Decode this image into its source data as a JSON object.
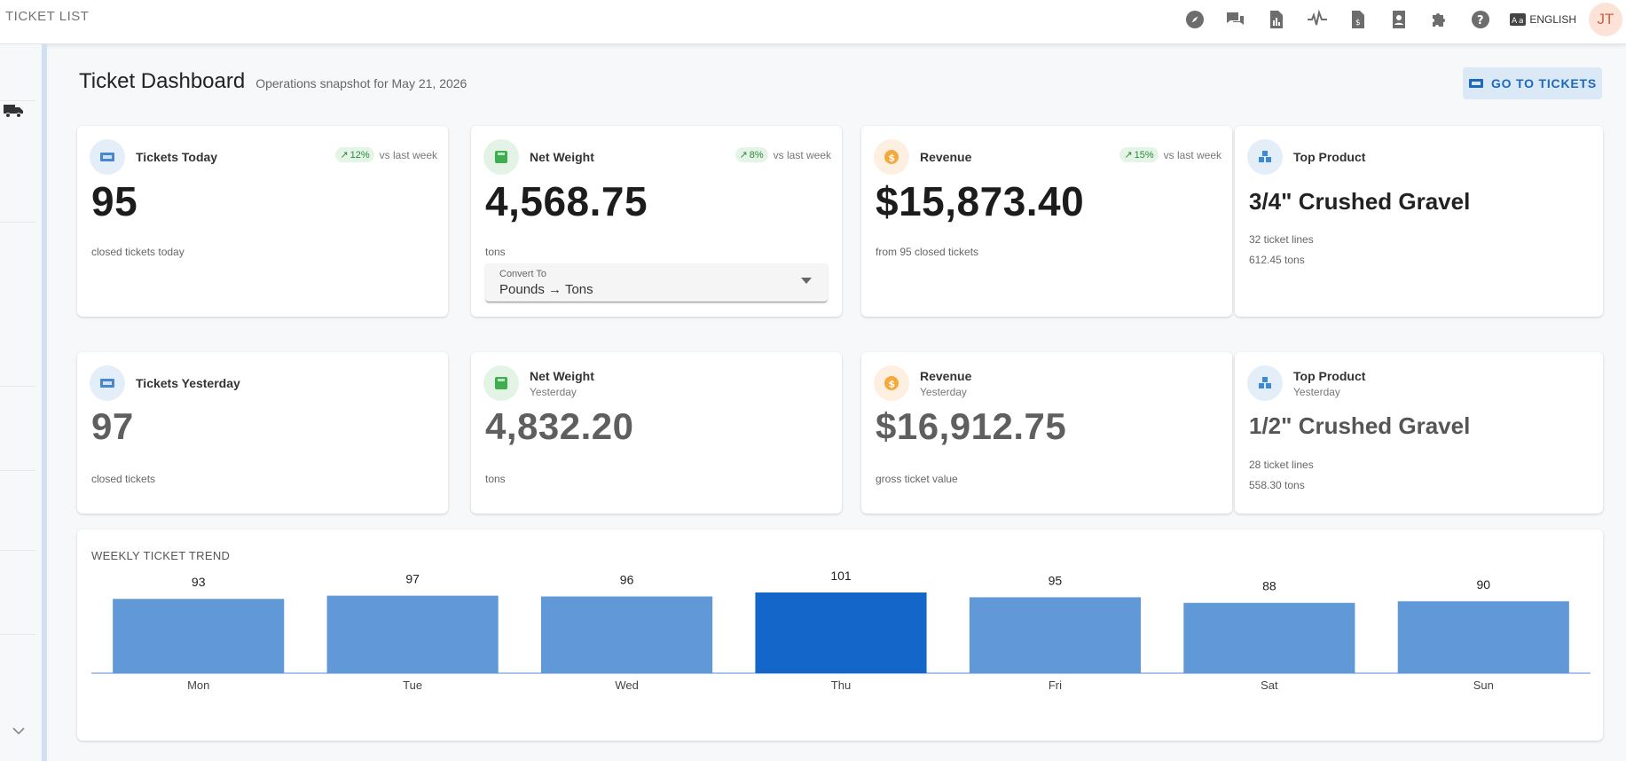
{
  "appbar": {
    "title": "TICKET LIST",
    "icons": [
      "compass-icon",
      "chat-icon",
      "report-icon",
      "pulse-icon",
      "invoice-icon",
      "contact-icon",
      "puzzle-icon",
      "help-icon"
    ],
    "language": "ENGLISH",
    "avatar_initials": "JT"
  },
  "header": {
    "title": "Ticket Dashboard",
    "subtitle": "Operations snapshot for May 21, 2026",
    "goto_label": "GO TO TICKETS"
  },
  "today": {
    "tickets": {
      "label": "Tickets Today",
      "trend": "12%",
      "trend_note": "vs last week",
      "value": "95",
      "note": "closed tickets today"
    },
    "weight": {
      "label": "Net Weight",
      "trend": "8%",
      "trend_note": "vs last week",
      "value": "4,568.75",
      "note": "tons",
      "convert_label": "Convert To",
      "convert_value": "Pounds → Tons"
    },
    "revenue": {
      "label": "Revenue",
      "trend": "15%",
      "trend_note": "vs last week",
      "value": "$15,873.40",
      "note": "from 95 closed tickets"
    },
    "product": {
      "label": "Top Product",
      "value": "3/4\" Crushed Gravel",
      "lines": "32 ticket lines",
      "tons": "612.45 tons"
    }
  },
  "yesterday": {
    "tickets": {
      "label": "Tickets Yesterday",
      "value": "97",
      "note": "closed tickets"
    },
    "weight": {
      "label": "Net Weight",
      "sublabel": "Yesterday",
      "value": "4,832.20",
      "note": "tons"
    },
    "revenue": {
      "label": "Revenue",
      "sublabel": "Yesterday",
      "value": "$16,912.75",
      "note": "gross ticket value"
    },
    "product": {
      "label": "Top Product",
      "sublabel": "Yesterday",
      "value": "1/2\" Crushed Gravel",
      "lines": "28 ticket lines",
      "tons": "558.30 tons"
    }
  },
  "colors": {
    "bar": "#6199d8",
    "bar_highlight": "#1466c8",
    "accent": "#1b6ac0"
  },
  "chart_data": {
    "type": "bar",
    "title": "WEEKLY TICKET TREND",
    "categories": [
      "Mon",
      "Tue",
      "Wed",
      "Thu",
      "Fri",
      "Sat",
      "Sun"
    ],
    "values": [
      93,
      97,
      96,
      101,
      95,
      88,
      90
    ],
    "highlight": "Thu",
    "ylim": [
      0,
      101
    ],
    "grid": false,
    "legend": "none"
  }
}
